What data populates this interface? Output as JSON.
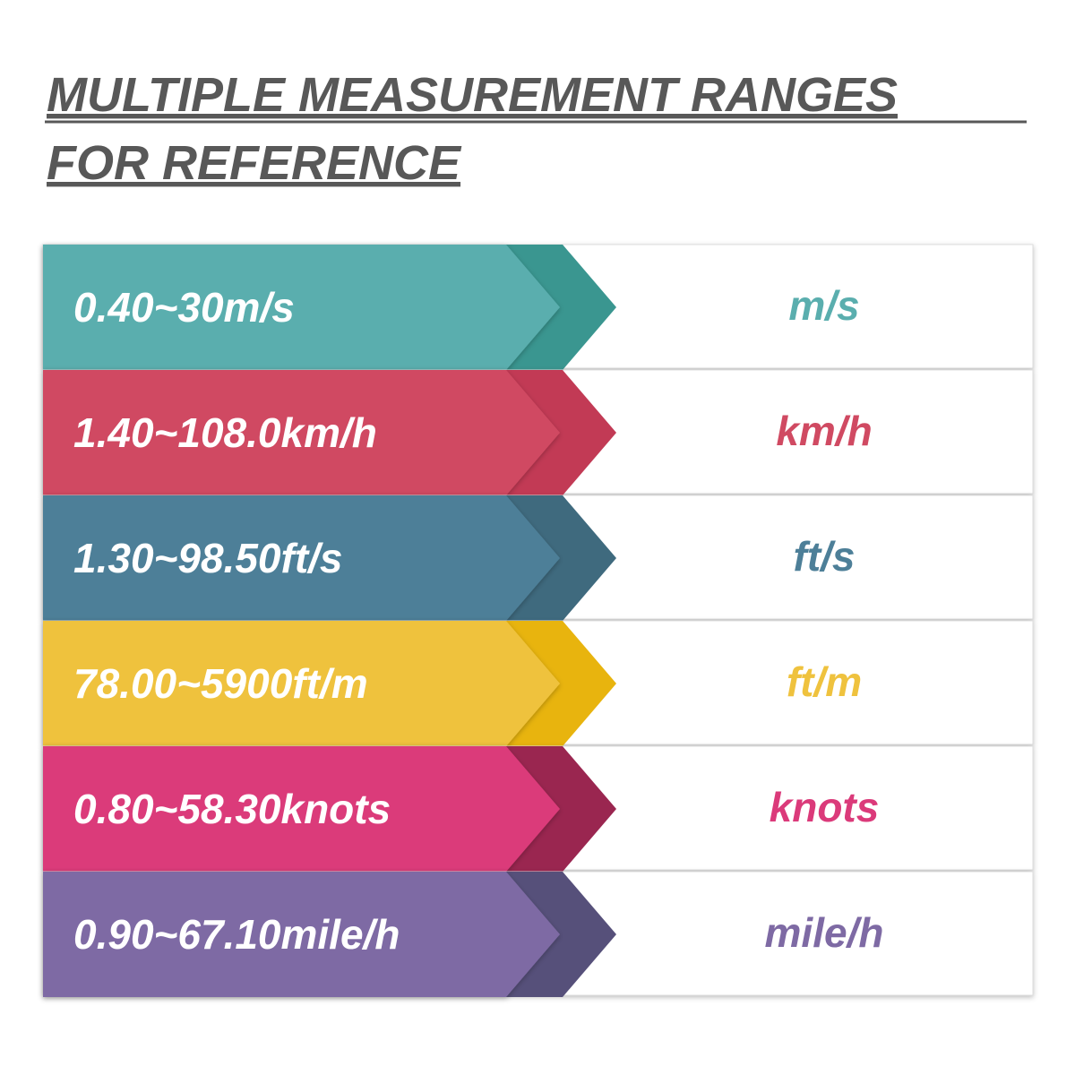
{
  "header": {
    "title_lines": [
      "MULTIPLE MEASUREMENT RANGES",
      "FOR REFERENCE"
    ]
  },
  "rows": [
    {
      "range": "0.40~30m/s",
      "unit": "m/s"
    },
    {
      "range": "1.40~108.0km/h",
      "unit": "km/h"
    },
    {
      "range": "1.30~98.50ft/s",
      "unit": "ft/s"
    },
    {
      "range": "78.00~5900ft/m",
      "unit": "ft/m"
    },
    {
      "range": "0.80~58.30knots",
      "unit": "knots"
    },
    {
      "range": "0.90~67.10mile/h",
      "unit": "mile/h"
    }
  ]
}
